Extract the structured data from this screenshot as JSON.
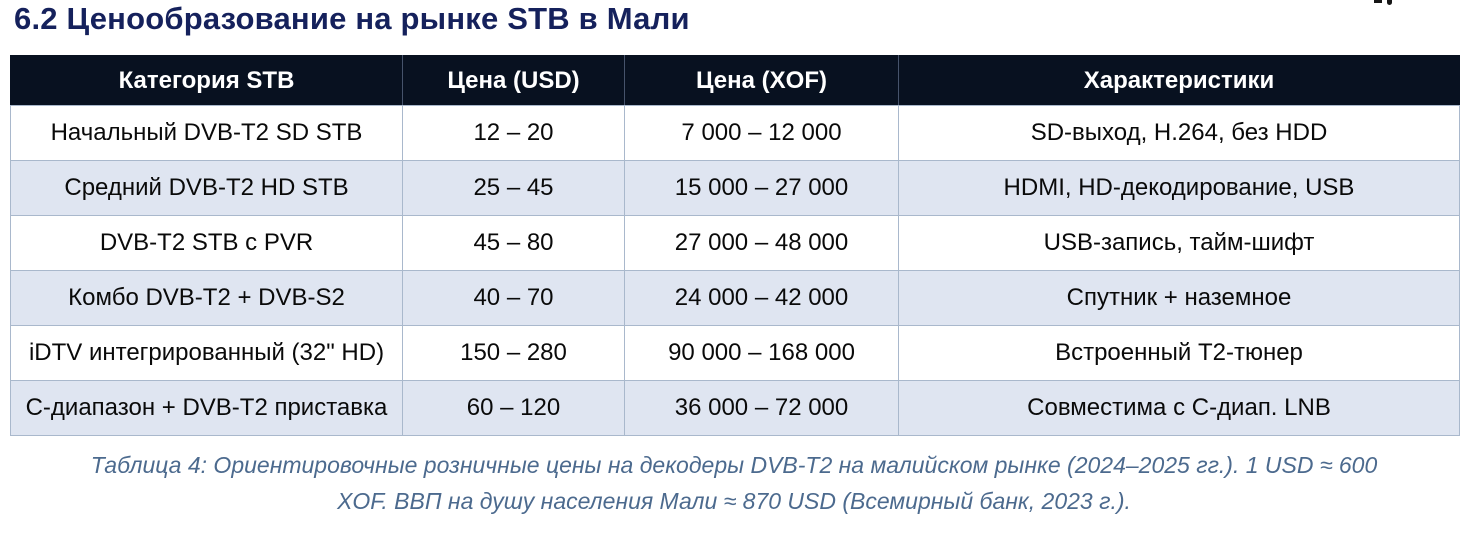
{
  "page_title": "6.2 Ценообразование на рынке STB в Мали",
  "table": {
    "headers": [
      "Категория STB",
      "Цена (USD)",
      "Цена (XOF)",
      "Характеристики"
    ],
    "rows": [
      [
        "Начальный DVB-T2 SD STB",
        "12 – 20",
        "7 000 – 12 000",
        "SD-выход, H.264, без HDD"
      ],
      [
        "Средний DVB-T2 HD STB",
        "25 – 45",
        "15 000 – 27 000",
        "HDMI, HD-декодирование, USB"
      ],
      [
        "DVB-T2 STB с PVR",
        "45 – 80",
        "27 000 – 48 000",
        "USB-запись, тайм-шифт"
      ],
      [
        "Комбо DVB-T2 + DVB-S2",
        "40 – 70",
        "24 000 – 42 000",
        "Спутник + наземное"
      ],
      [
        "iDTV интегрированный (32\" HD)",
        "150 – 280",
        "90 000 – 168 000",
        "Встроенный Т2-тюнер"
      ],
      [
        "C-диапазон + DVB-T2 приставка",
        "60 – 120",
        "36 000 – 72 000",
        "Совместима с C-диап. LNB"
      ]
    ]
  },
  "caption": {
    "lines": [
      "Таблица 4: Ориентировочные розничные цены на декодеры DVB-T2 на малийском рынке (2024–2025 гг.). 1 USD ≈ 600",
      "XOF. ВВП на душу населения Мали ≈ 870 USD (Всемирный банк, 2023 г.)."
    ]
  },
  "colors": {
    "title_text": "#15215c",
    "header_bg": "#081120",
    "header_text": "#ffffff",
    "header_divider": "#46536b",
    "row_bg": "#ffffff",
    "row_alt_bg": "#dfe5f1",
    "cell_border": "#a9b8cc",
    "body_text": "#0a0a0a",
    "caption_text": "#4c6a8e"
  }
}
